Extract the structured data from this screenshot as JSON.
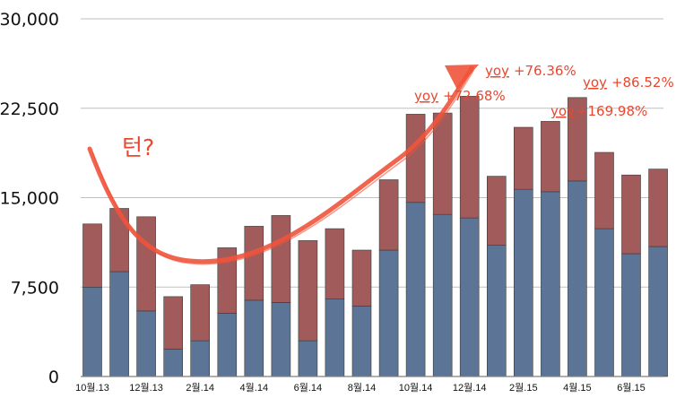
{
  "chart_data": {
    "type": "bar",
    "stacked": true,
    "categories": [
      "10월.13",
      "",
      "12월.13",
      "",
      "2월.14",
      "",
      "4월.14",
      "",
      "6월.14",
      "",
      "8월.14",
      "",
      "10월.14",
      "",
      "12월.14",
      "",
      "2월.15",
      "",
      "4월.15",
      "",
      "6월.15",
      ""
    ],
    "series": [
      {
        "values": [
          7500,
          8800,
          5500,
          2300,
          3000,
          5300,
          6400,
          6200,
          3000,
          6500,
          5900,
          10600,
          14600,
          13600,
          13300,
          11000,
          15700,
          15500,
          16400,
          12400,
          10300,
          10900
        ]
      },
      {
        "values": [
          5300,
          5300,
          7900,
          4400,
          4700,
          5500,
          6200,
          7300,
          8400,
          5900,
          4700,
          5900,
          7400,
          8500,
          10200,
          5800,
          5200,
          5900,
          7000,
          6400,
          6600,
          6500
        ]
      }
    ],
    "colors": [
      "#5c7495",
      "#a15b5b"
    ],
    "ylim": [
      0,
      30000
    ],
    "yticks": [
      "0",
      "7,500",
      "15,000",
      "22,500",
      "30,000"
    ],
    "grid": true,
    "annotations": {
      "turn": "턴?",
      "yoy1": {
        "prefix": "yoy",
        "value": "+72.68%"
      },
      "yoy2": {
        "prefix": "yoy",
        "value": "+76.36%"
      },
      "yoy3": {
        "prefix": "yoy",
        "value": "+169.98%"
      },
      "yoy4": {
        "prefix": "yoy",
        "value": "+86.52%"
      }
    },
    "arrow_color": "#f0533b"
  }
}
